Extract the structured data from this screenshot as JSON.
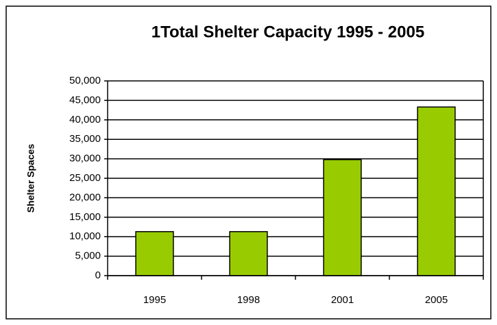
{
  "chart_data": {
    "type": "bar",
    "title": "1Total Shelter Capacity 1995 - 2005",
    "y_label": "Shelter Spaces",
    "categories": [
      "1995",
      "1998",
      "2001",
      "2005"
    ],
    "values": [
      11300,
      11300,
      29800,
      43300
    ],
    "color": "#99cc00",
    "ylim": [
      0,
      50000
    ],
    "yticks": [
      0,
      {
        "value": 5000,
        "label": "5,000"
      },
      {
        "value": 10000,
        "label": "10,000"
      },
      {
        "value": 15000,
        "label": "15,000"
      },
      {
        "value": 20000,
        "label": "20,000"
      },
      {
        "value": 25000,
        "label": "25,000"
      },
      {
        "value": 30000,
        "label": "30,000"
      },
      {
        "value": 35000,
        "label": "35,000"
      },
      {
        "value": 40000,
        "label": "40,000"
      },
      {
        "value": 45000,
        "label": "45,000"
      },
      {
        "value": 50000,
        "label": "50,000"
      }
    ],
    "grid": true
  }
}
